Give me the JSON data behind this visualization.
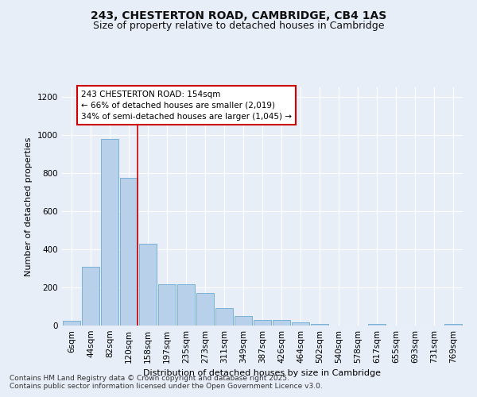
{
  "title_line1": "243, CHESTERTON ROAD, CAMBRIDGE, CB4 1AS",
  "title_line2": "Size of property relative to detached houses in Cambridge",
  "xlabel": "Distribution of detached houses by size in Cambridge",
  "ylabel": "Number of detached properties",
  "categories": [
    "6sqm",
    "44sqm",
    "82sqm",
    "120sqm",
    "158sqm",
    "197sqm",
    "235sqm",
    "273sqm",
    "311sqm",
    "349sqm",
    "387sqm",
    "426sqm",
    "464sqm",
    "502sqm",
    "540sqm",
    "578sqm",
    "617sqm",
    "655sqm",
    "693sqm",
    "731sqm",
    "769sqm"
  ],
  "values": [
    25,
    310,
    980,
    775,
    430,
    215,
    215,
    170,
    90,
    50,
    30,
    30,
    15,
    8,
    0,
    0,
    8,
    0,
    0,
    0,
    8
  ],
  "bar_color": "#b8d0ea",
  "bar_edge_color": "#6aaad4",
  "annotation_box_text": "243 CHESTERTON ROAD: 154sqm\n← 66% of detached houses are smaller (2,019)\n34% of semi-detached houses are larger (1,045) →",
  "annotation_box_facecolor": "#ffffff",
  "annotation_box_edgecolor": "#cc0000",
  "vline_color": "#cc0000",
  "ylim": [
    0,
    1250
  ],
  "yticks": [
    0,
    200,
    400,
    600,
    800,
    1000,
    1200
  ],
  "background_color": "#e8eef7",
  "grid_color": "#ffffff",
  "footnote_line1": "Contains HM Land Registry data © Crown copyright and database right 2025.",
  "footnote_line2": "Contains public sector information licensed under the Open Government Licence v3.0.",
  "title_fontsize": 10,
  "subtitle_fontsize": 9,
  "axis_label_fontsize": 8,
  "tick_fontsize": 7.5,
  "annotation_fontsize": 7.5,
  "footnote_fontsize": 6.5,
  "vline_x_index": 3.47
}
